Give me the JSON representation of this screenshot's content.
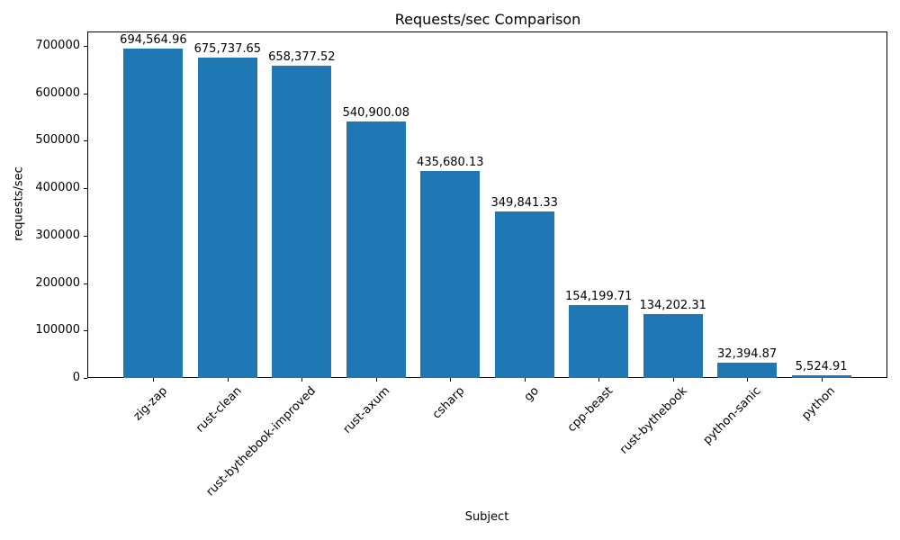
{
  "chart_data": {
    "type": "bar",
    "title": "Requests/sec Comparison",
    "xlabel": "Subject",
    "ylabel": "requests/sec",
    "categories": [
      "zig-zap",
      "rust-clean",
      "rust-bythebook-improved",
      "rust-axum",
      "csharp",
      "go",
      "cpp-beast",
      "rust-bythebook",
      "python-sanic",
      "python"
    ],
    "values": [
      694564.96,
      675737.65,
      658377.52,
      540900.08,
      435680.13,
      349841.33,
      154199.71,
      134202.31,
      32394.87,
      5524.91
    ],
    "value_labels": [
      "694,564.96",
      "675,737.65",
      "658,377.52",
      "540,900.08",
      "435,680.13",
      "349,841.33",
      "154,199.71",
      "134,202.31",
      "32,394.87",
      "5,524.91"
    ],
    "bar_color": "#1f77b4",
    "ylim": [
      0,
      730000
    ],
    "yticks": [
      0,
      100000,
      200000,
      300000,
      400000,
      500000,
      600000,
      700000
    ],
    "ytick_labels": [
      "0",
      "100000",
      "200000",
      "300000",
      "400000",
      "500000",
      "600000",
      "700000"
    ],
    "x_tick_rotation_deg": 45,
    "grid": false,
    "legend": null
  }
}
